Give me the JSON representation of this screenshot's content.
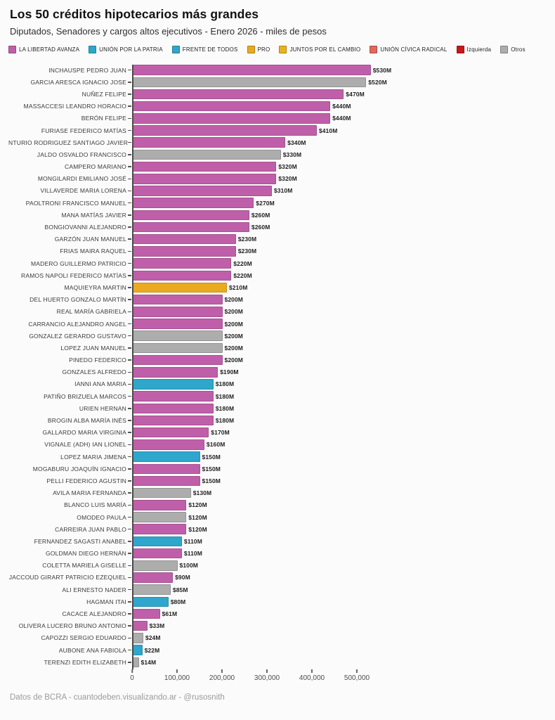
{
  "footer": {
    "text": "Datos de BCRA - cuantodeben.visualizando.ar - @rusosnith"
  },
  "colors": {
    "background": "#fbfbfc",
    "axis": "#4a4a4a",
    "la_libertad_avanza": "#C05FA9",
    "union_por_la_patria": "#2FA6CB",
    "frente_de_todos": "#2FA6CB",
    "pro": "#EAAA1F",
    "juntos_por_el_cambio": "#EAB221",
    "union_civica_radical": "#E0695B",
    "izquierda": "#C6181A",
    "otros": "#ADADAD"
  },
  "chart_data": {
    "type": "bar",
    "orientation": "horizontal",
    "title": "Los 50 créditos hipotecarios más grandes",
    "subtitle": "Diputados, Senadores y cargos altos ejecutivos - Enero 2026 - miles de pesos",
    "xlabel": "",
    "ylabel": "",
    "grid": false,
    "legend_position": "top",
    "xlim": [
      0,
      500000
    ],
    "x_ticks": [
      {
        "value": 0,
        "label": "0"
      },
      {
        "value": 100000,
        "label": "100,000"
      },
      {
        "value": 200000,
        "label": "200,000"
      },
      {
        "value": 300000,
        "label": "300,000"
      },
      {
        "value": 400000,
        "label": "400,000"
      },
      {
        "value": 500000,
        "label": "500,000"
      }
    ],
    "legend": [
      {
        "label": "LA LIBERTAD AVANZA",
        "color": "#C05FA9"
      },
      {
        "label": "UNIÓN POR LA PATRIA",
        "color": "#2FA6CB"
      },
      {
        "label": "FRENTE DE TODOS",
        "color": "#2FA6CB"
      },
      {
        "label": "PRO",
        "color": "#EAAA1F"
      },
      {
        "label": "JUNTOS POR EL CAMBIO",
        "color": "#EAB221"
      },
      {
        "label": "UNIÓN CÍVICA RADICAL",
        "color": "#E0695B"
      },
      {
        "label": "Izquierda",
        "color": "#C6181A"
      },
      {
        "label": "Otros",
        "color": "#ADADAD"
      }
    ],
    "bars": [
      {
        "name": "INCHAUSPE PEDRO JUAN",
        "value": 530000,
        "label": "$530M",
        "color": "#C05FA9"
      },
      {
        "name": "GARCIA ARESCA IGNACIO JOSE",
        "value": 520000,
        "label": "$520M",
        "color": "#ADADAD"
      },
      {
        "name": "NUÑEZ FELIPE",
        "value": 470000,
        "label": "$470M",
        "color": "#C05FA9"
      },
      {
        "name": "MASSACCESI LEANDRO HORACIO",
        "value": 440000,
        "label": "$440M",
        "color": "#C05FA9"
      },
      {
        "name": "BERÓN FELIPE",
        "value": 440000,
        "label": "$440M",
        "color": "#C05FA9"
      },
      {
        "name": "FURIASE FEDERICO MATÍAS",
        "value": 410000,
        "label": "$410M",
        "color": "#C05FA9"
      },
      {
        "name": "NTURIO RODRIGUEZ SANTIAGO JAVIER",
        "value": 340000,
        "label": "$340M",
        "color": "#C05FA9"
      },
      {
        "name": "JALDO OSVALDO FRANCISCO",
        "value": 330000,
        "label": "$330M",
        "color": "#ADADAD"
      },
      {
        "name": "CAMPERO MARIANO",
        "value": 320000,
        "label": "$320M",
        "color": "#C05FA9"
      },
      {
        "name": "MONGILARDI EMILIANO JOSÉ",
        "value": 320000,
        "label": "$320M",
        "color": "#C05FA9"
      },
      {
        "name": "VILLAVERDE MARIA LORENA",
        "value": 310000,
        "label": "$310M",
        "color": "#C05FA9"
      },
      {
        "name": "PAOLTRONI FRANCISCO MANUEL",
        "value": 270000,
        "label": "$270M",
        "color": "#C05FA9"
      },
      {
        "name": "MANA MATÍAS JAVIER",
        "value": 260000,
        "label": "$260M",
        "color": "#C05FA9"
      },
      {
        "name": "BONGIOVANNI ALEJANDRO",
        "value": 260000,
        "label": "$260M",
        "color": "#C05FA9"
      },
      {
        "name": "GARZÓN JUAN MANUEL",
        "value": 230000,
        "label": "$230M",
        "color": "#C05FA9"
      },
      {
        "name": "FRIAS MAIRA RAQUEL",
        "value": 230000,
        "label": "$230M",
        "color": "#C05FA9"
      },
      {
        "name": "MADERO GUILLERMO PATRICIO",
        "value": 220000,
        "label": "$220M",
        "color": "#C05FA9"
      },
      {
        "name": "RAMOS NAPOLI FEDERICO MATÍAS",
        "value": 220000,
        "label": "$220M",
        "color": "#C05FA9"
      },
      {
        "name": "MAQUIEYRA MARTIN",
        "value": 210000,
        "label": "$210M",
        "color": "#EAAA1F"
      },
      {
        "name": "DEL HUERTO GONZALO MARTÍN",
        "value": 200000,
        "label": "$200M",
        "color": "#C05FA9"
      },
      {
        "name": "REAL MARÍA GABRIELA",
        "value": 200000,
        "label": "$200M",
        "color": "#C05FA9"
      },
      {
        "name": "CARRANCIO ALEJANDRO ANGEL",
        "value": 200000,
        "label": "$200M",
        "color": "#C05FA9"
      },
      {
        "name": "GONZALEZ GERARDO GUSTAVO",
        "value": 200000,
        "label": "$200M",
        "color": "#ADADAD"
      },
      {
        "name": "LOPEZ JUAN MANUEL",
        "value": 200000,
        "label": "$200M",
        "color": "#ADADAD"
      },
      {
        "name": "PINEDO FEDERICO",
        "value": 200000,
        "label": "$200M",
        "color": "#C05FA9"
      },
      {
        "name": "GONZALES ALFREDO",
        "value": 190000,
        "label": "$190M",
        "color": "#C05FA9"
      },
      {
        "name": "IANNI ANA MARIA",
        "value": 180000,
        "label": "$180M",
        "color": "#2FA6CB"
      },
      {
        "name": "PATIÑO BRIZUELA MARCOS",
        "value": 180000,
        "label": "$180M",
        "color": "#C05FA9"
      },
      {
        "name": "URIEN HERNAN",
        "value": 180000,
        "label": "$180M",
        "color": "#C05FA9"
      },
      {
        "name": "BROGIN ALBA MARÍA INÉS",
        "value": 180000,
        "label": "$180M",
        "color": "#C05FA9"
      },
      {
        "name": "GALLARDO MARIA VIRGINIA",
        "value": 170000,
        "label": "$170M",
        "color": "#C05FA9"
      },
      {
        "name": "VIGNALE (ADH) IAN LIONEL",
        "value": 160000,
        "label": "$160M",
        "color": "#C05FA9"
      },
      {
        "name": "LOPEZ MARIA JIMENA",
        "value": 150000,
        "label": "$150M",
        "color": "#2FA6CB"
      },
      {
        "name": "MOGABURU JOAQUÍN IGNACIO",
        "value": 150000,
        "label": "$150M",
        "color": "#C05FA9"
      },
      {
        "name": "PELLI FEDERICO AGUSTIN",
        "value": 150000,
        "label": "$150M",
        "color": "#C05FA9"
      },
      {
        "name": "AVILA MARIA FERNANDA",
        "value": 130000,
        "label": "$130M",
        "color": "#ADADAD"
      },
      {
        "name": "BLANCO LUIS MARÍA",
        "value": 120000,
        "label": "$120M",
        "color": "#C05FA9"
      },
      {
        "name": "OMODEO PAULA",
        "value": 120000,
        "label": "$120M",
        "color": "#ADADAD"
      },
      {
        "name": "CARREIRA JUAN PABLO",
        "value": 120000,
        "label": "$120M",
        "color": "#C05FA9"
      },
      {
        "name": "FERNANDEZ SAGASTI ANABEL",
        "value": 110000,
        "label": "$110M",
        "color": "#2FA6CB"
      },
      {
        "name": "GOLDMAN DIEGO HERNÁN",
        "value": 110000,
        "label": "$110M",
        "color": "#C05FA9"
      },
      {
        "name": "COLETTA MARIELA GISELLE",
        "value": 100000,
        "label": "$100M",
        "color": "#ADADAD"
      },
      {
        "name": "JACCOUD GIRART PATRICIO EZEQUIEL",
        "value": 90000,
        "label": "$90M",
        "color": "#C05FA9"
      },
      {
        "name": "ALI ERNESTO NADER",
        "value": 85000,
        "label": "$85M",
        "color": "#ADADAD"
      },
      {
        "name": "HAGMAN ITAI",
        "value": 80000,
        "label": "$80M",
        "color": "#2FA6CB"
      },
      {
        "name": "CACACE ALEJANDRO",
        "value": 61000,
        "label": "$61M",
        "color": "#C05FA9"
      },
      {
        "name": "OLIVERA LUCERO BRUNO ANTONIO",
        "value": 33000,
        "label": "$33M",
        "color": "#C05FA9"
      },
      {
        "name": "CAPOZZI SERGIO EDUARDO",
        "value": 24000,
        "label": "$24M",
        "color": "#ADADAD"
      },
      {
        "name": "AUBONE ANA FABIOLA",
        "value": 22000,
        "label": "$22M",
        "color": "#2FA6CB"
      },
      {
        "name": "TERENZI EDITH ELIZABETH",
        "value": 14000,
        "label": "$14M",
        "color": "#ADADAD"
      }
    ]
  }
}
